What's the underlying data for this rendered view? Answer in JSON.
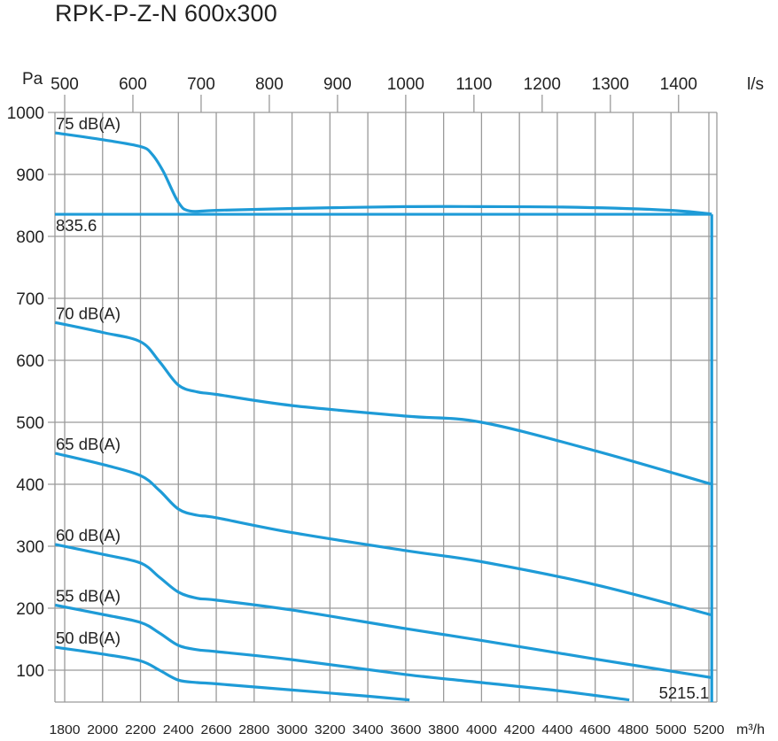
{
  "chart_data": {
    "type": "line",
    "title": "RPK-P-Z-N 600x300",
    "ylabel": "Pa",
    "xlabel": "m³/h",
    "x2label": "l/s",
    "ylim": [
      50,
      1000
    ],
    "xlim": [
      1750,
      5242
    ],
    "grid": true,
    "yticks": [
      100,
      200,
      300,
      400,
      500,
      600,
      700,
      800,
      900,
      1000
    ],
    "xticks": [
      1800,
      2000,
      2200,
      2400,
      2600,
      2800,
      3000,
      3200,
      3400,
      3600,
      3800,
      4000,
      4200,
      4400,
      4600,
      4800,
      5000,
      5200
    ],
    "x2ticks": [
      500,
      600,
      700,
      800,
      900,
      1000,
      1100,
      1200,
      1300,
      1400
    ],
    "line_color": "#1e9bd7",
    "series": [
      {
        "name": "75 dB(A)",
        "x": [
          1750,
          2000,
          2200,
          2260,
          2320,
          2400,
          2460,
          2600,
          3000,
          3600,
          4000,
          4500,
          5000,
          5215
        ],
        "y": [
          967,
          956,
          945,
          933,
          905,
          855,
          841,
          842,
          845,
          848,
          848,
          847,
          842,
          836
        ]
      },
      {
        "name": "70 dB(A)",
        "x": [
          1750,
          2000,
          2200,
          2300,
          2400,
          2500,
          2600,
          3000,
          3600,
          4000,
          4600,
          5215
        ],
        "y": [
          661,
          645,
          630,
          598,
          560,
          549,
          545,
          527,
          510,
          500,
          454,
          400
        ]
      },
      {
        "name": "65 dB(A)",
        "x": [
          1750,
          2000,
          2200,
          2300,
          2400,
          2500,
          2600,
          3000,
          3600,
          4000,
          4600,
          5215
        ],
        "y": [
          450,
          432,
          414,
          390,
          360,
          350,
          346,
          322,
          293,
          275,
          238,
          189
        ]
      },
      {
        "name": "60 dB(A)",
        "x": [
          1750,
          2000,
          2200,
          2300,
          2400,
          2500,
          2600,
          3000,
          3600,
          4000,
          4600,
          5215
        ],
        "y": [
          303,
          287,
          273,
          250,
          226,
          216,
          213,
          197,
          167,
          148,
          118,
          88
        ]
      },
      {
        "name": "55 dB(A)",
        "x": [
          1750,
          2000,
          2200,
          2300,
          2400,
          2500,
          2600,
          3000,
          3600,
          4000,
          4400,
          4780
        ],
        "y": [
          205,
          190,
          177,
          160,
          140,
          133,
          130,
          117,
          93,
          80,
          67,
          52
        ]
      },
      {
        "name": "50 dB(A)",
        "x": [
          1750,
          2000,
          2200,
          2300,
          2400,
          2500,
          2600,
          3000,
          3400,
          3620
        ],
        "y": [
          137,
          126,
          115,
          100,
          84,
          80,
          78,
          68,
          58,
          52
        ]
      }
    ],
    "operating_limit": {
      "pressure": 835.6,
      "flow": 5215.1,
      "pressure_label": "835.6",
      "flow_label": "5215.1"
    }
  }
}
